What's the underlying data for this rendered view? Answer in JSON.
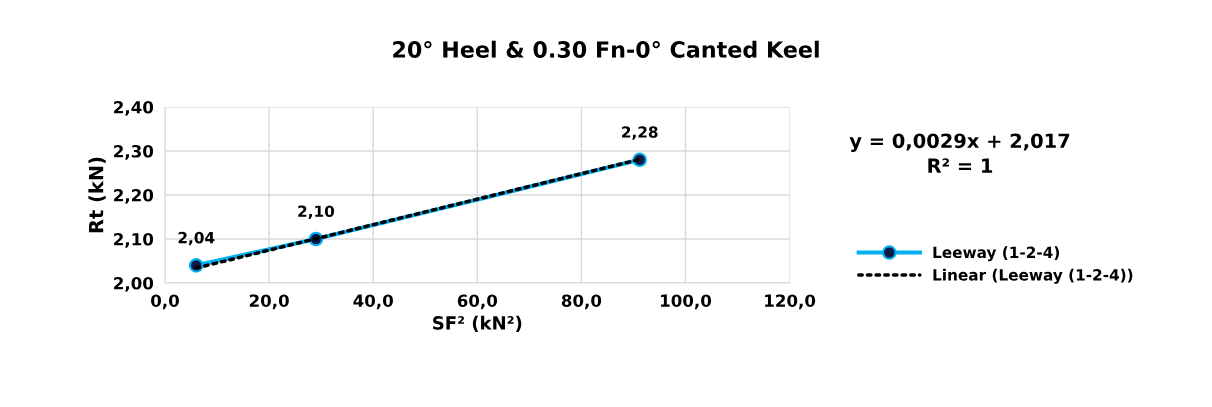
{
  "chart_data": {
    "type": "line",
    "title": "20° Heel & 0.30 Fn-0° Canted Keel",
    "xlabel": "SF² (kN²)",
    "ylabel": "Rt (kN)",
    "annotations": [
      "y = 0,0029x + 2,017\nR² = 1"
    ],
    "series": [
      {
        "name": "Leeway (1-2-4)",
        "color": "#00b0f0",
        "x": [
          6.0,
          29.0,
          91.2
        ],
        "values": [
          2.04,
          2.1,
          2.28
        ],
        "marker": "circle",
        "line_style": "solid",
        "value_labels": [
          "2,04",
          "2,10",
          "2,28"
        ]
      },
      {
        "name": "Linear (Leeway (1-2-4))",
        "type": "line",
        "color": "#000000",
        "x": [
          6.0,
          91.2
        ],
        "values": [
          2.034,
          2.281
        ],
        "marker": "none",
        "line_style": "dotted"
      }
    ],
    "xlim": [
      0,
      120
    ],
    "xticks": [
      {
        "value": 0,
        "label": "0,0"
      },
      {
        "value": 20,
        "label": "20,0"
      },
      {
        "value": 40,
        "label": "40,0"
      },
      {
        "value": 60,
        "label": "60,0"
      },
      {
        "value": 80,
        "label": "80,0"
      },
      {
        "value": 100,
        "label": "100,0"
      },
      {
        "value": 120,
        "label": "120,0"
      }
    ],
    "ylim": [
      2.0,
      2.4
    ],
    "yticks": [
      {
        "value": 2.0,
        "label": "2,00"
      },
      {
        "value": 2.1,
        "label": "2,10"
      },
      {
        "value": 2.2,
        "label": "2,20"
      },
      {
        "value": 2.3,
        "label": "2,30"
      },
      {
        "value": 2.4,
        "label": "2,40"
      }
    ],
    "grid": true,
    "legend": "right"
  }
}
